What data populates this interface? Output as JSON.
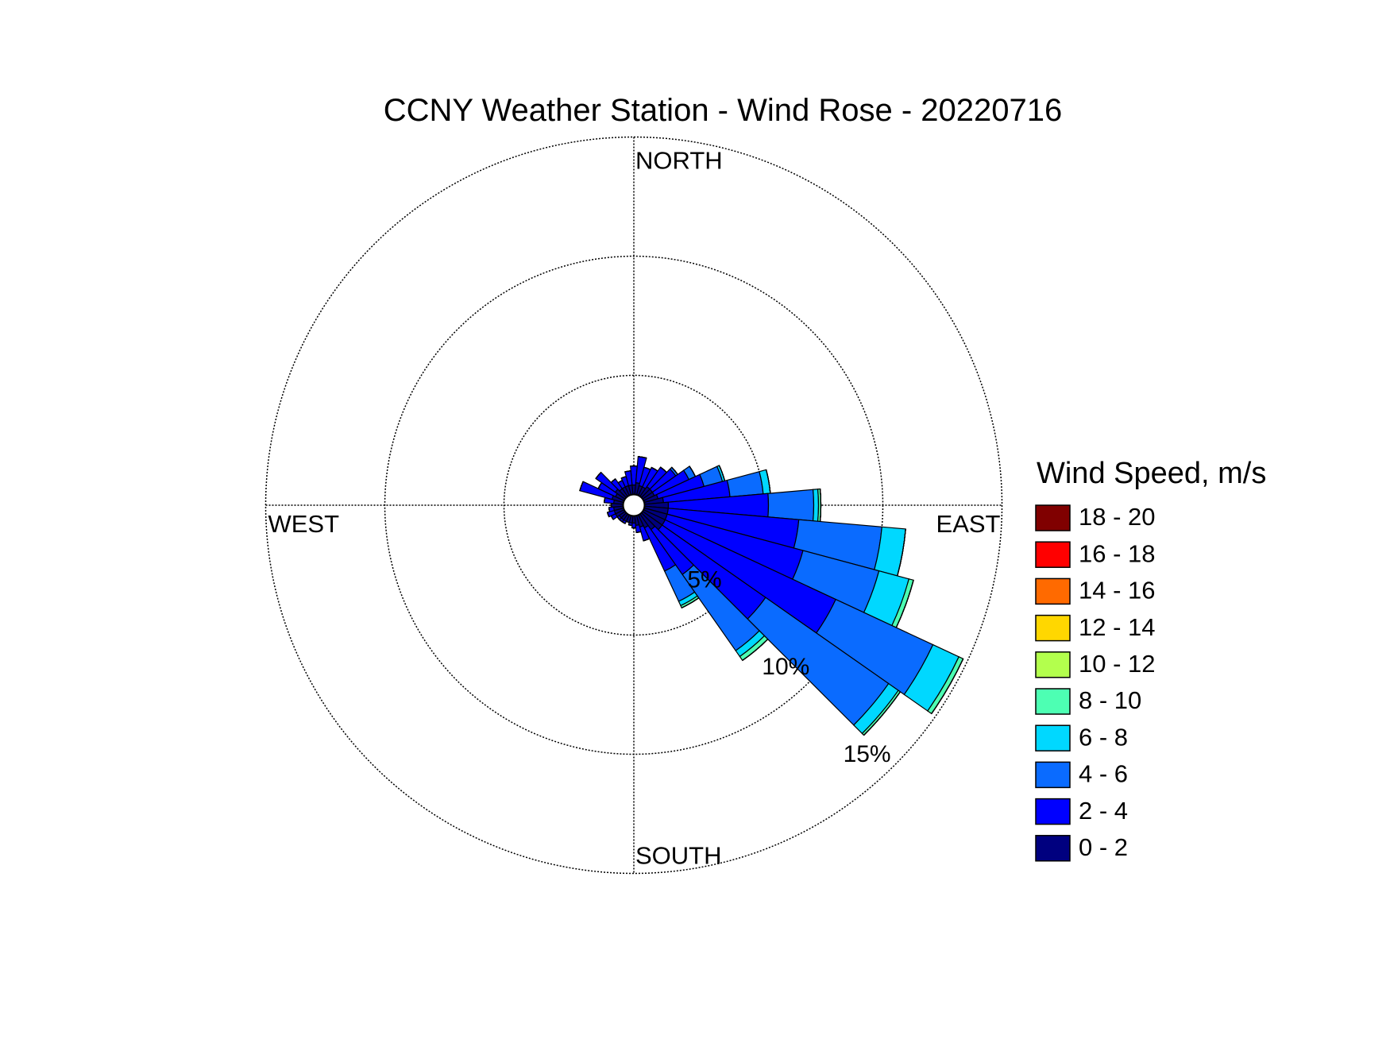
{
  "chart_data": {
    "type": "windrose",
    "title": "CCNY Weather Station - Wind Rose - 20220716",
    "direction_labels": [
      "NORTH",
      "EAST",
      "SOUTH",
      "WEST"
    ],
    "rlim": [
      0,
      15
    ],
    "rticks": [
      {
        "value": 5,
        "label": "5%"
      },
      {
        "value": 10,
        "label": "10%"
      },
      {
        "value": 15,
        "label": "15%"
      }
    ],
    "grid": true,
    "legend_title": "Wind Speed, m/s",
    "legend": "right",
    "series": [
      {
        "name": "0 - 2",
        "color": "#00007f",
        "values": [
          0.4,
          0.5,
          0.4,
          0.4,
          0.5,
          0.5,
          0.5,
          0.6,
          0.8,
          1.0,
          1.0,
          1.0,
          1.0,
          1.0,
          0.8,
          0.6,
          0.5,
          0.4,
          0.3,
          0.3,
          0.3,
          0.3,
          0.3,
          0.3,
          0.4,
          0.4,
          0.4,
          0.5,
          0.4,
          0.5,
          0.4,
          0.5,
          0.4,
          0.4,
          0.4,
          0.4
        ]
      },
      {
        "name": "2 - 4",
        "color": "#0000ff",
        "values": [
          0.8,
          1.1,
          0.8,
          0.9,
          1.0,
          1.2,
          1.6,
          2.0,
          2.8,
          4.2,
          5.5,
          5.9,
          7.9,
          5.3,
          2.3,
          2.0,
          0.6,
          0.3,
          0.2,
          0.1,
          0,
          0.1,
          0.1,
          0.1,
          0.2,
          0.3,
          0.2,
          0,
          0.4,
          1.4,
          0.8,
          1.0,
          0.5,
          0.3,
          0.4,
          0.6
        ]
      },
      {
        "name": "4 - 6",
        "color": "#0a6bff",
        "values": [
          0,
          0,
          0,
          0,
          0,
          0.1,
          0.3,
          0.8,
          1.4,
          1.9,
          3.5,
          3.3,
          4.5,
          6.3,
          3.9,
          1.4,
          0,
          0,
          0,
          0,
          0,
          0,
          0,
          0,
          0,
          0,
          0,
          0,
          0,
          0,
          0,
          0,
          0,
          0,
          0,
          0
        ]
      },
      {
        "name": "6 - 8",
        "color": "#00d8ff",
        "values": [
          0,
          0,
          0,
          0,
          0,
          0,
          0,
          0.1,
          0.3,
          0.2,
          1.0,
          1.3,
          1.2,
          0.5,
          0.3,
          0.2,
          0,
          0,
          0,
          0,
          0,
          0,
          0,
          0,
          0,
          0,
          0,
          0,
          0,
          0,
          0,
          0,
          0,
          0,
          0,
          0
        ]
      },
      {
        "name": "8 - 10",
        "color": "#4dffb3",
        "values": [
          0,
          0,
          0,
          0,
          0,
          0,
          0,
          0,
          0,
          0.1,
          0,
          0.2,
          0.2,
          0.1,
          0.2,
          0.1,
          0,
          0,
          0,
          0,
          0,
          0,
          0,
          0,
          0,
          0,
          0,
          0,
          0,
          0,
          0,
          0,
          0,
          0,
          0,
          0
        ]
      },
      {
        "name": "10 - 12",
        "color": "#b3ff4d",
        "values": [
          0,
          0,
          0,
          0,
          0,
          0,
          0,
          0,
          0,
          0,
          0,
          0,
          0,
          0,
          0,
          0,
          0,
          0,
          0,
          0,
          0,
          0,
          0,
          0,
          0,
          0,
          0,
          0,
          0,
          0,
          0,
          0,
          0,
          0,
          0,
          0
        ]
      },
      {
        "name": "12 - 14",
        "color": "#ffd700",
        "values": [
          0,
          0,
          0,
          0,
          0,
          0,
          0,
          0,
          0,
          0,
          0,
          0,
          0,
          0,
          0,
          0,
          0,
          0,
          0,
          0,
          0,
          0,
          0,
          0,
          0,
          0,
          0,
          0,
          0,
          0,
          0,
          0,
          0,
          0,
          0,
          0
        ]
      },
      {
        "name": "14 - 16",
        "color": "#ff6a00",
        "values": [
          0,
          0,
          0,
          0,
          0,
          0,
          0,
          0,
          0,
          0,
          0,
          0,
          0,
          0,
          0,
          0,
          0,
          0,
          0,
          0,
          0,
          0,
          0,
          0,
          0,
          0,
          0,
          0,
          0,
          0,
          0,
          0,
          0,
          0,
          0,
          0
        ]
      },
      {
        "name": "16 - 18",
        "color": "#ff0000",
        "values": [
          0,
          0,
          0,
          0,
          0,
          0,
          0,
          0,
          0,
          0,
          0,
          0,
          0,
          0,
          0,
          0,
          0,
          0,
          0,
          0,
          0,
          0,
          0,
          0,
          0,
          0,
          0,
          0,
          0,
          0,
          0,
          0,
          0,
          0,
          0,
          0
        ]
      },
      {
        "name": "18 - 20",
        "color": "#800000",
        "values": [
          0,
          0,
          0,
          0,
          0,
          0,
          0,
          0,
          0,
          0,
          0,
          0,
          0,
          0,
          0,
          0,
          0,
          0,
          0,
          0,
          0,
          0,
          0,
          0,
          0,
          0,
          0,
          0,
          0,
          0,
          0,
          0,
          0,
          0,
          0,
          0
        ]
      }
    ]
  }
}
